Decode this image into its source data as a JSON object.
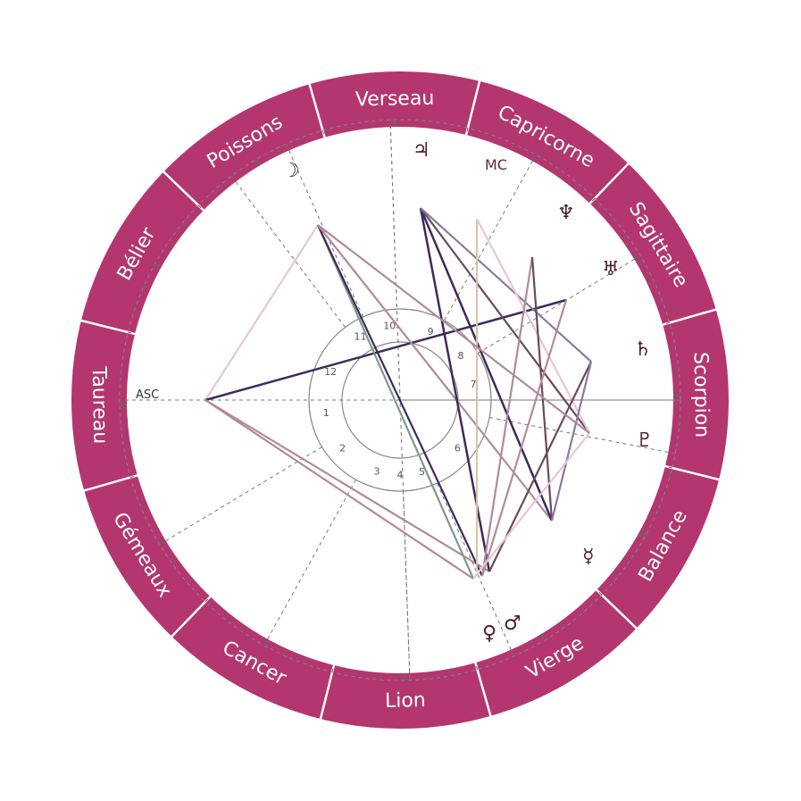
{
  "ring_color": "#b3366f",
  "signs": [
    {
      "label": "Verseau"
    },
    {
      "label": "Capricorne"
    },
    {
      "label": "Sagittaire"
    },
    {
      "label": "Scorpion"
    },
    {
      "label": "Balance"
    },
    {
      "label": "Vierge"
    },
    {
      "label": "Lion"
    },
    {
      "label": "Cancer"
    },
    {
      "label": "Gémeaux"
    },
    {
      "label": "Taureau"
    },
    {
      "label": "Bélier"
    },
    {
      "label": "Poissons"
    }
  ],
  "houses": [
    "1",
    "2",
    "3",
    "4",
    "5",
    "6",
    "7",
    "8",
    "9",
    "10",
    "11",
    "12"
  ],
  "axes": {
    "asc": "ASC",
    "mc": "MC"
  },
  "planets": [
    {
      "name": "jupiter",
      "glyph": "♃"
    },
    {
      "name": "moon",
      "glyph": "☽"
    },
    {
      "name": "neptune",
      "glyph": "♆"
    },
    {
      "name": "uranus",
      "glyph": "♅"
    },
    {
      "name": "saturn",
      "glyph": "♄"
    },
    {
      "name": "pluto",
      "glyph": "♇"
    },
    {
      "name": "mercury",
      "glyph": "☿"
    },
    {
      "name": "venus",
      "glyph": "♀"
    },
    {
      "name": "mars",
      "glyph": "♂"
    }
  ],
  "aspect_colors": [
    "#3d2a5e",
    "#6b4a5a",
    "#8a7aa0",
    "#e8c6d2",
    "#b28a9a",
    "#7a9a8a",
    "#d8c4a8"
  ]
}
